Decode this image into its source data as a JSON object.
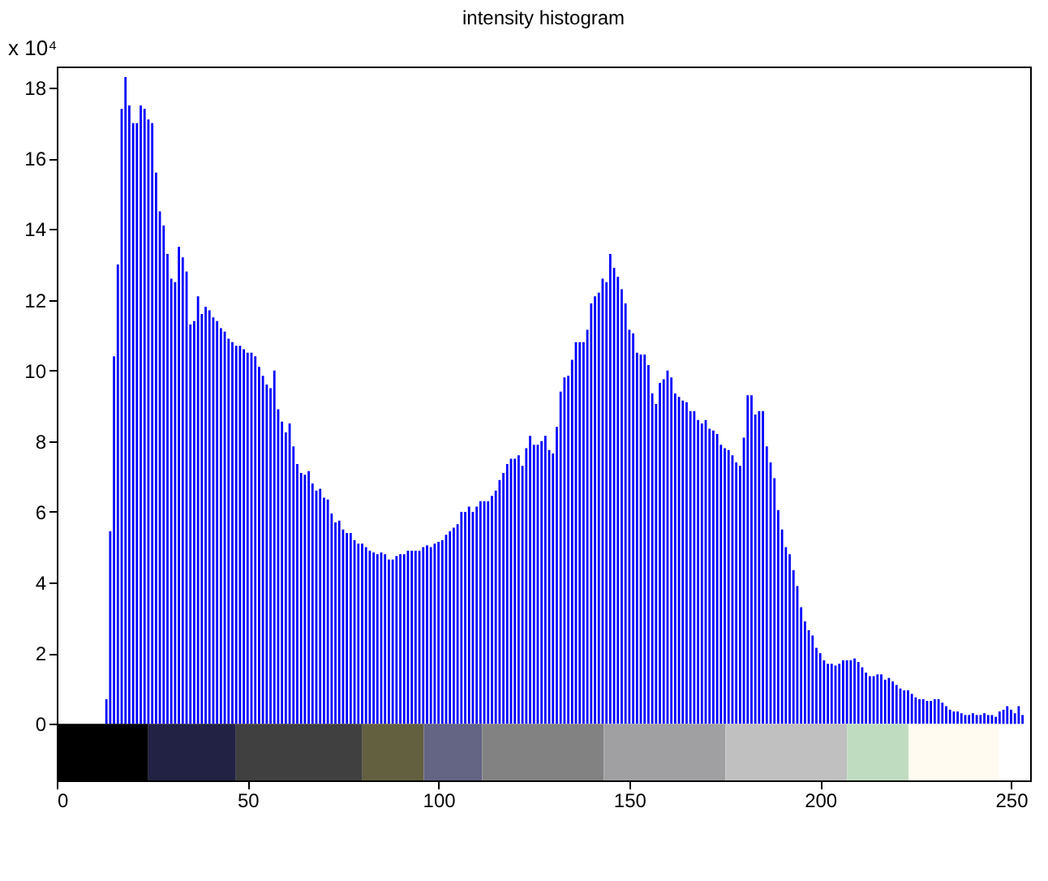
{
  "chart_data": {
    "type": "bar",
    "title": "intensity histogram",
    "x": [
      0,
      1,
      2,
      3,
      4,
      5,
      6,
      7,
      8,
      9,
      10,
      11,
      12,
      13,
      14,
      15,
      16,
      17,
      18,
      19,
      20,
      21,
      22,
      23,
      24,
      25,
      26,
      27,
      28,
      29,
      30,
      31,
      32,
      33,
      34,
      35,
      36,
      37,
      38,
      39,
      40,
      41,
      42,
      43,
      44,
      45,
      46,
      47,
      48,
      49,
      50,
      51,
      52,
      53,
      54,
      55,
      56,
      57,
      58,
      59,
      60,
      61,
      62,
      63,
      64,
      65,
      66,
      67,
      68,
      69,
      70,
      71,
      72,
      73,
      74,
      75,
      76,
      77,
      78,
      79,
      80,
      81,
      82,
      83,
      84,
      85,
      86,
      87,
      88,
      89,
      90,
      91,
      92,
      93,
      94,
      95,
      96,
      97,
      98,
      99,
      100,
      101,
      102,
      103,
      104,
      105,
      106,
      107,
      108,
      109,
      110,
      111,
      112,
      113,
      114,
      115,
      116,
      117,
      118,
      119,
      120,
      121,
      122,
      123,
      124,
      125,
      126,
      127,
      128,
      129,
      130,
      131,
      132,
      133,
      134,
      135,
      136,
      137,
      138,
      139,
      140,
      141,
      142,
      143,
      144,
      145,
      146,
      147,
      148,
      149,
      150,
      151,
      152,
      153,
      154,
      155,
      156,
      157,
      158,
      159,
      160,
      161,
      162,
      163,
      164,
      165,
      166,
      167,
      168,
      169,
      170,
      171,
      172,
      173,
      174,
      175,
      176,
      177,
      178,
      179,
      180,
      181,
      182,
      183,
      184,
      185,
      186,
      187,
      188,
      189,
      190,
      191,
      192,
      193,
      194,
      195,
      196,
      197,
      198,
      199,
      200,
      201,
      202,
      203,
      204,
      205,
      206,
      207,
      208,
      209,
      210,
      211,
      212,
      213,
      214,
      215,
      216,
      217,
      218,
      219,
      220,
      221,
      222,
      223,
      224,
      225,
      226,
      227,
      228,
      229,
      230,
      231,
      232,
      233,
      234,
      235,
      236,
      237,
      238,
      239,
      240,
      241,
      242,
      243,
      244,
      245,
      246,
      247,
      248,
      249,
      250,
      251,
      252,
      253,
      254,
      255
    ],
    "values": [
      0,
      0,
      0,
      0,
      0,
      0,
      0,
      0,
      0,
      0,
      0,
      0,
      0,
      0.7,
      5.45,
      10.4,
      13.0,
      17.4,
      18.3,
      17.5,
      17.0,
      17.0,
      17.5,
      17.4,
      17.1,
      17.0,
      15.6,
      14.5,
      14.1,
      13.3,
      12.6,
      12.5,
      13.5,
      13.2,
      12.8,
      11.3,
      11.4,
      12.1,
      11.6,
      11.8,
      11.7,
      11.5,
      11.4,
      11.2,
      11.1,
      10.9,
      10.8,
      10.7,
      10.7,
      10.6,
      10.5,
      10.5,
      10.4,
      10.1,
      9.85,
      9.6,
      9.5,
      10.0,
      8.9,
      8.55,
      8.25,
      8.5,
      7.85,
      7.35,
      7.1,
      7.05,
      7.15,
      6.8,
      6.6,
      6.65,
      6.4,
      6.35,
      5.95,
      5.7,
      5.75,
      5.5,
      5.4,
      5.4,
      5.2,
      5.1,
      5.1,
      5.0,
      4.9,
      4.85,
      4.8,
      4.85,
      4.8,
      4.65,
      4.65,
      4.75,
      4.8,
      4.8,
      4.9,
      4.9,
      4.9,
      4.9,
      5.0,
      5.05,
      5.0,
      5.1,
      5.15,
      5.2,
      5.35,
      5.45,
      5.55,
      5.65,
      6.0,
      6.0,
      6.15,
      6.0,
      6.15,
      6.3,
      6.3,
      6.3,
      6.45,
      6.6,
      6.9,
      7.1,
      7.35,
      7.5,
      7.5,
      7.6,
      7.3,
      7.8,
      8.15,
      7.9,
      7.9,
      8.0,
      8.15,
      7.75,
      7.65,
      8.4,
      9.4,
      9.8,
      9.85,
      10.3,
      10.8,
      10.8,
      10.8,
      11.15,
      11.9,
      12.1,
      12.2,
      12.6,
      12.5,
      13.3,
      12.9,
      12.65,
      12.3,
      11.9,
      11.15,
      11.05,
      10.5,
      10.45,
      10.45,
      10.15,
      9.35,
      9.05,
      9.65,
      9.75,
      10.0,
      9.8,
      9.35,
      9.25,
      9.15,
      9.1,
      8.85,
      8.85,
      8.6,
      8.5,
      8.6,
      8.35,
      8.3,
      8.2,
      7.9,
      7.8,
      7.75,
      7.6,
      7.4,
      7.3,
      8.1,
      9.3,
      9.3,
      8.75,
      8.85,
      8.85,
      7.85,
      7.4,
      6.95,
      6.05,
      5.5,
      5.0,
      4.8,
      4.35,
      3.9,
      3.3,
      2.9,
      2.65,
      2.5,
      2.15,
      2.0,
      1.8,
      1.7,
      1.7,
      1.65,
      1.7,
      1.8,
      1.8,
      1.8,
      1.85,
      1.75,
      1.6,
      1.45,
      1.35,
      1.35,
      1.4,
      1.4,
      1.25,
      1.3,
      1.2,
      1.1,
      1.0,
      0.95,
      0.95,
      0.85,
      0.75,
      0.7,
      0.7,
      0.65,
      0.65,
      0.7,
      0.7,
      0.6,
      0.5,
      0.4,
      0.35,
      0.35,
      0.3,
      0.25,
      0.25,
      0.3,
      0.25,
      0.25,
      0.3,
      0.25,
      0.25,
      0.2,
      0.35,
      0.4,
      0.5,
      0.4,
      0.3,
      0.5,
      0.25,
      0,
      0
    ],
    "color": "#0000ff",
    "xlim": [
      0,
      255
    ],
    "xticks": [
      0,
      50,
      100,
      150,
      200,
      250
    ],
    "ylim": [
      -1.6,
      18.6
    ],
    "yticks": [
      0,
      2,
      4,
      6,
      8,
      10,
      12,
      14,
      16,
      18
    ],
    "annotations": [
      "x 10⁴"
    ],
    "grid": false
  }
}
